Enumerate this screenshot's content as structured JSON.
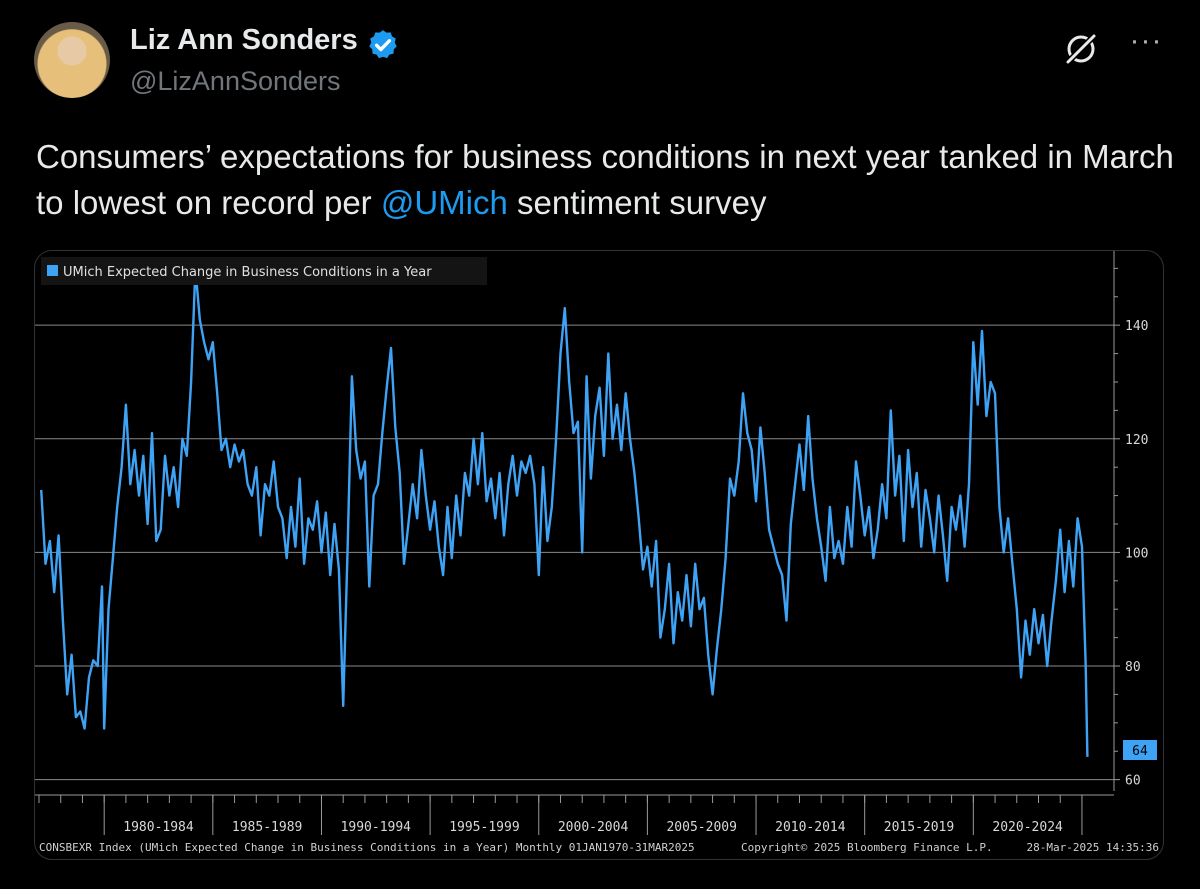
{
  "author": {
    "display_name": "Liz Ann Sonders",
    "handle": "@LizAnnSonders"
  },
  "tweet": {
    "text_before": "Consumers’ expectations for business conditions in next year tanked in March to lowest on record per ",
    "mention": "@UMich",
    "text_after": " sentiment survey"
  },
  "colors": {
    "accent": "#1d9bf0",
    "series": "#3fa3f5",
    "background": "#000000",
    "secondary_text": "#71767b"
  },
  "icons": {
    "verified": "verified-badge-icon",
    "grok": "grok-icon",
    "more": "more-options-icon"
  },
  "chart_data": {
    "type": "line",
    "legend": "UMich Expected Change in Business Conditions in a Year",
    "last_value_label": "64",
    "y_ticks": [
      "60",
      "80",
      "100",
      "120",
      "140"
    ],
    "ylim": [
      58,
      152
    ],
    "xlim": [
      1977.0,
      2025.6
    ],
    "x_tick_labels": [
      "1980-1984",
      "1985-1989",
      "1990-1994",
      "1995-1999",
      "2000-2004",
      "2005-2009",
      "2010-2014",
      "2015-2019",
      "2020-2024"
    ],
    "x_tick_dates": [
      1980,
      1985,
      1990,
      1995,
      2000,
      2005,
      2010,
      2015,
      2020,
      2025
    ],
    "footer_left": "CONSBEXR Index (UMich Expected Change in Business Conditions in a Year)  Monthly 01JAN1970-31MAR2025",
    "footer_mid": "Copyright© 2025 Bloomberg Finance L.P.",
    "footer_right": "28-Mar-2025 14:35:36",
    "series": [
      {
        "name": "UMich Expected Change in Business Conditions in a Year",
        "points": [
          [
            1977.1,
            111
          ],
          [
            1977.3,
            98
          ],
          [
            1977.5,
            102
          ],
          [
            1977.7,
            93
          ],
          [
            1977.9,
            103
          ],
          [
            1978.1,
            88
          ],
          [
            1978.3,
            75
          ],
          [
            1978.5,
            82
          ],
          [
            1978.7,
            71
          ],
          [
            1978.9,
            72
          ],
          [
            1979.1,
            69
          ],
          [
            1979.3,
            78
          ],
          [
            1979.5,
            81
          ],
          [
            1979.7,
            80
          ],
          [
            1979.9,
            94
          ],
          [
            1980.0,
            69
          ],
          [
            1980.2,
            90
          ],
          [
            1980.4,
            99
          ],
          [
            1980.6,
            108
          ],
          [
            1980.8,
            115
          ],
          [
            1981.0,
            126
          ],
          [
            1981.2,
            112
          ],
          [
            1981.4,
            118
          ],
          [
            1981.6,
            110
          ],
          [
            1981.8,
            117
          ],
          [
            1982.0,
            105
          ],
          [
            1982.2,
            121
          ],
          [
            1982.4,
            102
          ],
          [
            1982.6,
            104
          ],
          [
            1982.8,
            117
          ],
          [
            1983.0,
            110
          ],
          [
            1983.2,
            115
          ],
          [
            1983.4,
            108
          ],
          [
            1983.6,
            120
          ],
          [
            1983.8,
            117
          ],
          [
            1984.0,
            130
          ],
          [
            1984.2,
            150
          ],
          [
            1984.4,
            141
          ],
          [
            1984.6,
            137
          ],
          [
            1984.8,
            134
          ],
          [
            1985.0,
            137
          ],
          [
            1985.2,
            128
          ],
          [
            1985.4,
            118
          ],
          [
            1985.6,
            120
          ],
          [
            1985.8,
            115
          ],
          [
            1986.0,
            119
          ],
          [
            1986.2,
            116
          ],
          [
            1986.4,
            118
          ],
          [
            1986.6,
            112
          ],
          [
            1986.8,
            110
          ],
          [
            1987.0,
            115
          ],
          [
            1987.2,
            103
          ],
          [
            1987.4,
            112
          ],
          [
            1987.6,
            110
          ],
          [
            1987.8,
            116
          ],
          [
            1988.0,
            108
          ],
          [
            1988.2,
            106
          ],
          [
            1988.4,
            99
          ],
          [
            1988.6,
            108
          ],
          [
            1988.8,
            101
          ],
          [
            1989.0,
            113
          ],
          [
            1989.2,
            98
          ],
          [
            1989.4,
            106
          ],
          [
            1989.6,
            104
          ],
          [
            1989.8,
            109
          ],
          [
            1990.0,
            100
          ],
          [
            1990.2,
            107
          ],
          [
            1990.4,
            96
          ],
          [
            1990.6,
            105
          ],
          [
            1990.8,
            97
          ],
          [
            1991.0,
            73
          ],
          [
            1991.2,
            100
          ],
          [
            1991.4,
            131
          ],
          [
            1991.6,
            118
          ],
          [
            1991.8,
            113
          ],
          [
            1992.0,
            116
          ],
          [
            1992.2,
            94
          ],
          [
            1992.4,
            110
          ],
          [
            1992.6,
            112
          ],
          [
            1992.8,
            121
          ],
          [
            1993.0,
            129
          ],
          [
            1993.2,
            136
          ],
          [
            1993.4,
            122
          ],
          [
            1993.6,
            114
          ],
          [
            1993.8,
            98
          ],
          [
            1994.0,
            105
          ],
          [
            1994.2,
            112
          ],
          [
            1994.4,
            106
          ],
          [
            1994.6,
            118
          ],
          [
            1994.8,
            110
          ],
          [
            1995.0,
            104
          ],
          [
            1995.2,
            109
          ],
          [
            1995.4,
            101
          ],
          [
            1995.6,
            96
          ],
          [
            1995.8,
            108
          ],
          [
            1996.0,
            99
          ],
          [
            1996.2,
            110
          ],
          [
            1996.4,
            103
          ],
          [
            1996.6,
            114
          ],
          [
            1996.8,
            110
          ],
          [
            1997.0,
            120
          ],
          [
            1997.2,
            112
          ],
          [
            1997.4,
            121
          ],
          [
            1997.6,
            109
          ],
          [
            1997.8,
            113
          ],
          [
            1998.0,
            106
          ],
          [
            1998.2,
            114
          ],
          [
            1998.4,
            103
          ],
          [
            1998.6,
            112
          ],
          [
            1998.8,
            117
          ],
          [
            1999.0,
            110
          ],
          [
            1999.2,
            116
          ],
          [
            1999.4,
            114
          ],
          [
            1999.6,
            117
          ],
          [
            1999.8,
            112
          ],
          [
            2000.0,
            96
          ],
          [
            2000.2,
            115
          ],
          [
            2000.4,
            102
          ],
          [
            2000.6,
            108
          ],
          [
            2000.8,
            120
          ],
          [
            2001.0,
            135
          ],
          [
            2001.2,
            143
          ],
          [
            2001.4,
            130
          ],
          [
            2001.6,
            121
          ],
          [
            2001.8,
            123
          ],
          [
            2002.0,
            100
          ],
          [
            2002.2,
            131
          ],
          [
            2002.4,
            113
          ],
          [
            2002.6,
            124
          ],
          [
            2002.8,
            129
          ],
          [
            2003.0,
            117
          ],
          [
            2003.2,
            135
          ],
          [
            2003.4,
            120
          ],
          [
            2003.6,
            126
          ],
          [
            2003.8,
            118
          ],
          [
            2004.0,
            128
          ],
          [
            2004.2,
            120
          ],
          [
            2004.4,
            114
          ],
          [
            2004.6,
            106
          ],
          [
            2004.8,
            97
          ],
          [
            2005.0,
            101
          ],
          [
            2005.2,
            94
          ],
          [
            2005.4,
            102
          ],
          [
            2005.6,
            85
          ],
          [
            2005.8,
            90
          ],
          [
            2006.0,
            98
          ],
          [
            2006.2,
            84
          ],
          [
            2006.4,
            93
          ],
          [
            2006.6,
            88
          ],
          [
            2006.8,
            96
          ],
          [
            2007.0,
            87
          ],
          [
            2007.2,
            98
          ],
          [
            2007.4,
            90
          ],
          [
            2007.6,
            92
          ],
          [
            2007.8,
            82
          ],
          [
            2008.0,
            75
          ],
          [
            2008.2,
            83
          ],
          [
            2008.4,
            90
          ],
          [
            2008.6,
            99
          ],
          [
            2008.8,
            113
          ],
          [
            2009.0,
            110
          ],
          [
            2009.2,
            116
          ],
          [
            2009.4,
            128
          ],
          [
            2009.6,
            121
          ],
          [
            2009.8,
            118
          ],
          [
            2010.0,
            109
          ],
          [
            2010.2,
            122
          ],
          [
            2010.4,
            114
          ],
          [
            2010.6,
            104
          ],
          [
            2010.8,
            101
          ],
          [
            2011.0,
            98
          ],
          [
            2011.2,
            96
          ],
          [
            2011.4,
            88
          ],
          [
            2011.6,
            105
          ],
          [
            2011.8,
            112
          ],
          [
            2012.0,
            119
          ],
          [
            2012.2,
            111
          ],
          [
            2012.4,
            124
          ],
          [
            2012.6,
            113
          ],
          [
            2012.8,
            106
          ],
          [
            2013.0,
            101
          ],
          [
            2013.2,
            95
          ],
          [
            2013.4,
            108
          ],
          [
            2013.6,
            99
          ],
          [
            2013.8,
            102
          ],
          [
            2014.0,
            98
          ],
          [
            2014.2,
            108
          ],
          [
            2014.4,
            101
          ],
          [
            2014.6,
            116
          ],
          [
            2014.8,
            110
          ],
          [
            2015.0,
            103
          ],
          [
            2015.2,
            108
          ],
          [
            2015.4,
            99
          ],
          [
            2015.6,
            104
          ],
          [
            2015.8,
            112
          ],
          [
            2016.0,
            106
          ],
          [
            2016.2,
            125
          ],
          [
            2016.4,
            110
          ],
          [
            2016.6,
            117
          ],
          [
            2016.8,
            102
          ],
          [
            2017.0,
            118
          ],
          [
            2017.2,
            108
          ],
          [
            2017.4,
            114
          ],
          [
            2017.6,
            101
          ],
          [
            2017.8,
            111
          ],
          [
            2018.0,
            106
          ],
          [
            2018.2,
            100
          ],
          [
            2018.4,
            110
          ],
          [
            2018.6,
            103
          ],
          [
            2018.8,
            95
          ],
          [
            2019.0,
            108
          ],
          [
            2019.2,
            104
          ],
          [
            2019.4,
            110
          ],
          [
            2019.6,
            101
          ],
          [
            2019.8,
            112
          ],
          [
            2020.0,
            137
          ],
          [
            2020.2,
            126
          ],
          [
            2020.4,
            139
          ],
          [
            2020.6,
            124
          ],
          [
            2020.8,
            130
          ],
          [
            2021.0,
            128
          ],
          [
            2021.2,
            108
          ],
          [
            2021.4,
            100
          ],
          [
            2021.6,
            106
          ],
          [
            2021.8,
            98
          ],
          [
            2022.0,
            90
          ],
          [
            2022.2,
            78
          ],
          [
            2022.4,
            88
          ],
          [
            2022.6,
            82
          ],
          [
            2022.8,
            90
          ],
          [
            2023.0,
            84
          ],
          [
            2023.2,
            89
          ],
          [
            2023.4,
            80
          ],
          [
            2023.6,
            88
          ],
          [
            2023.8,
            95
          ],
          [
            2024.0,
            104
          ],
          [
            2024.2,
            93
          ],
          [
            2024.4,
            102
          ],
          [
            2024.6,
            94
          ],
          [
            2024.8,
            106
          ],
          [
            2025.0,
            101
          ],
          [
            2025.17,
            80
          ],
          [
            2025.25,
            64
          ]
        ]
      }
    ]
  }
}
